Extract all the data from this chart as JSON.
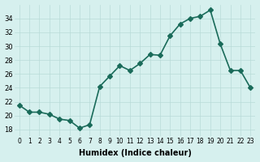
{
  "x": [
    0,
    1,
    2,
    3,
    4,
    5,
    6,
    7,
    8,
    9,
    10,
    11,
    12,
    13,
    14,
    15,
    16,
    17,
    18,
    19,
    20,
    21,
    22,
    23
  ],
  "y": [
    21.5,
    20.5,
    20.5,
    20.2,
    19.5,
    19.3,
    18.2,
    18.7,
    24.2,
    25.7,
    27.2,
    26.5,
    27.5,
    28.8,
    28.7,
    31.5,
    33.2,
    34.0,
    34.3,
    35.2,
    30.3,
    26.5,
    26.5,
    24.0
  ],
  "xlabel": "Humidex (Indice chaleur)",
  "ylim": [
    17,
    36
  ],
  "yticks": [
    18,
    20,
    22,
    24,
    26,
    28,
    30,
    32,
    34
  ],
  "line_color": "#1a6b5a",
  "bg_color": "#d6f0ee",
  "grid_color": "#b8dbd8",
  "marker_size": 3,
  "line_width": 1.2
}
